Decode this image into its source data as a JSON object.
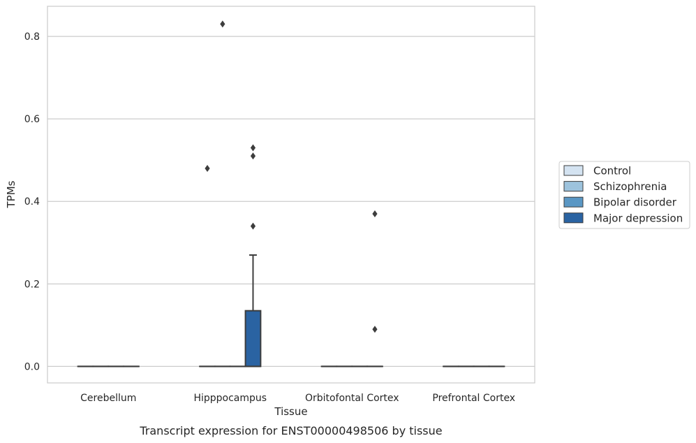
{
  "chart_data": {
    "type": "box",
    "caption": "Transcript expression for ENST00000498506 by tissue",
    "xlabel": "Tissue",
    "ylabel": "TPMs",
    "ylim": [
      -0.04,
      0.873
    ],
    "yticks": [
      0.0,
      0.2,
      0.4,
      0.6,
      0.8
    ],
    "ytick_labels": [
      "0.0",
      "0.2",
      "0.4",
      "0.6",
      "0.8"
    ],
    "grid": "horizontal",
    "legend_position": "right",
    "categories": [
      "Cerebellum",
      "Hipppocampus",
      "Orbitofontal Cortex",
      "Prefrontal Cortex"
    ],
    "series": [
      {
        "name": "Control",
        "color": "#d4e3f1"
      },
      {
        "name": "Schizophrenia",
        "color": "#9dc3dd"
      },
      {
        "name": "Bipolar disorder",
        "color": "#5a97c4"
      },
      {
        "name": "Major depression",
        "color": "#2a63a2"
      }
    ],
    "boxes": [
      {
        "category": 0,
        "series": 0,
        "q1": 0,
        "median": 0,
        "q3": 0,
        "whisker_low": 0,
        "whisker_high": 0
      },
      {
        "category": 0,
        "series": 1,
        "q1": 0,
        "median": 0,
        "q3": 0,
        "whisker_low": 0,
        "whisker_high": 0
      },
      {
        "category": 0,
        "series": 2,
        "q1": 0,
        "median": 0,
        "q3": 0,
        "whisker_low": 0,
        "whisker_high": 0
      },
      {
        "category": 0,
        "series": 3,
        "q1": 0,
        "median": 0,
        "q3": 0,
        "whisker_low": 0,
        "whisker_high": 0
      },
      {
        "category": 1,
        "series": 0,
        "q1": 0,
        "median": 0,
        "q3": 0,
        "whisker_low": 0,
        "whisker_high": 0
      },
      {
        "category": 1,
        "series": 1,
        "q1": 0,
        "median": 0,
        "q3": 0,
        "whisker_low": 0,
        "whisker_high": 0
      },
      {
        "category": 1,
        "series": 2,
        "q1": 0,
        "median": 0,
        "q3": 0,
        "whisker_low": 0,
        "whisker_high": 0
      },
      {
        "category": 1,
        "series": 3,
        "q1": 0,
        "median": 0,
        "q3": 0.135,
        "whisker_low": 0,
        "whisker_high": 0.27
      },
      {
        "category": 2,
        "series": 0,
        "q1": 0,
        "median": 0,
        "q3": 0,
        "whisker_low": 0,
        "whisker_high": 0
      },
      {
        "category": 2,
        "series": 1,
        "q1": 0,
        "median": 0,
        "q3": 0,
        "whisker_low": 0,
        "whisker_high": 0
      },
      {
        "category": 2,
        "series": 2,
        "q1": 0,
        "median": 0,
        "q3": 0,
        "whisker_low": 0,
        "whisker_high": 0
      },
      {
        "category": 2,
        "series": 3,
        "q1": 0,
        "median": 0,
        "q3": 0,
        "whisker_low": 0,
        "whisker_high": 0
      },
      {
        "category": 3,
        "series": 0,
        "q1": 0,
        "median": 0,
        "q3": 0,
        "whisker_low": 0,
        "whisker_high": 0
      },
      {
        "category": 3,
        "series": 1,
        "q1": 0,
        "median": 0,
        "q3": 0,
        "whisker_low": 0,
        "whisker_high": 0
      },
      {
        "category": 3,
        "series": 2,
        "q1": 0,
        "median": 0,
        "q3": 0,
        "whisker_low": 0,
        "whisker_high": 0
      },
      {
        "category": 3,
        "series": 3,
        "q1": 0,
        "median": 0,
        "q3": 0,
        "whisker_low": 0,
        "whisker_high": 0
      }
    ],
    "outliers": [
      {
        "category": 1,
        "series": 0,
        "value": 0.48
      },
      {
        "category": 1,
        "series": 1,
        "value": 0.83
      },
      {
        "category": 1,
        "series": 3,
        "value": 0.53
      },
      {
        "category": 1,
        "series": 3,
        "value": 0.51
      },
      {
        "category": 1,
        "series": 3,
        "value": 0.34
      },
      {
        "category": 2,
        "series": 3,
        "value": 0.37
      },
      {
        "category": 2,
        "series": 3,
        "value": 0.09
      }
    ]
  }
}
